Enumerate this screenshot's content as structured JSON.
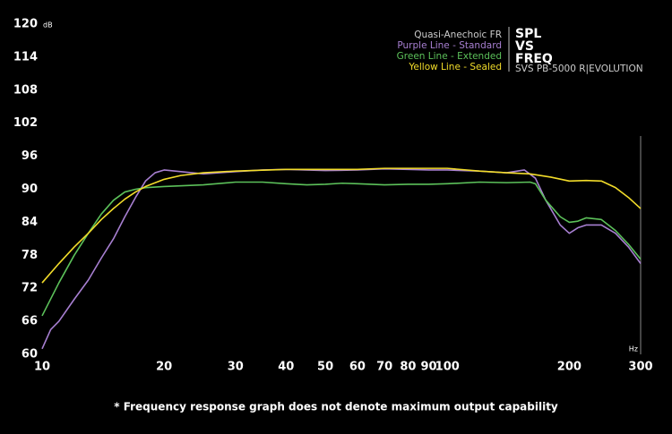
{
  "chart_data": {
    "type": "line",
    "title_lines": [
      "SPL",
      "VS",
      "FREQ"
    ],
    "subtitle": "SVS PB-5000 R|EVOLUTION",
    "legend_title": "Quasi-Anechoic FR",
    "y_unit": "dB",
    "x_unit": "Hz",
    "footnote": "* Frequency response graph does not denote maximum output capability",
    "xscale": "log",
    "xlim": [
      10,
      300
    ],
    "ylim": [
      60,
      120
    ],
    "xticks": [
      10,
      20,
      30,
      40,
      50,
      60,
      70,
      80,
      90,
      100,
      200,
      300
    ],
    "yticks": [
      60,
      66,
      72,
      78,
      84,
      90,
      96,
      102,
      108,
      114,
      120
    ],
    "grid": false,
    "legend_position": "top-right",
    "series": [
      {
        "name": "Purple Line - Standard",
        "color": "#a77fd1",
        "x": [
          10,
          10.5,
          11,
          12,
          13,
          14,
          15,
          16,
          17,
          18,
          19,
          20,
          22,
          25,
          30,
          35,
          40,
          50,
          60,
          70,
          80,
          90,
          100,
          120,
          140,
          155,
          165,
          175,
          190,
          200,
          210,
          220,
          240,
          260,
          280,
          300
        ],
        "values": [
          61,
          64.5,
          66,
          70,
          73.5,
          77.5,
          81,
          85,
          88.5,
          91.5,
          93,
          93.5,
          93.2,
          92.8,
          93.2,
          93.5,
          93.6,
          93.4,
          93.5,
          93.7,
          93.6,
          93.5,
          93.5,
          93.3,
          93,
          93.5,
          92,
          88,
          83.5,
          82,
          83,
          83.5,
          83.5,
          82,
          79.5,
          76.5
        ]
      },
      {
        "name": "Green Line - Extended",
        "color": "#5cc15a",
        "x": [
          10,
          11,
          12,
          13,
          14,
          15,
          16,
          17,
          18,
          20,
          25,
          30,
          35,
          40,
          45,
          50,
          55,
          60,
          70,
          80,
          90,
          100,
          120,
          140,
          160,
          165,
          175,
          190,
          200,
          210,
          220,
          240,
          260,
          280,
          300
        ],
        "values": [
          67,
          73,
          78,
          82,
          85.5,
          88,
          89.5,
          90,
          90.3,
          90.5,
          90.8,
          91.3,
          91.3,
          91,
          90.8,
          90.9,
          91.1,
          91,
          90.8,
          90.9,
          90.9,
          91,
          91.3,
          91.2,
          91.3,
          91,
          88,
          85,
          84,
          84.2,
          84.8,
          84.5,
          82.5,
          80,
          77.3
        ]
      },
      {
        "name": "Yellow Line - Sealed",
        "color": "#f2dc2a",
        "x": [
          10,
          11,
          12,
          13,
          14,
          15,
          16,
          17,
          18,
          20,
          22,
          25,
          30,
          40,
          50,
          60,
          70,
          80,
          100,
          120,
          140,
          160,
          180,
          200,
          220,
          240,
          260,
          280,
          300
        ],
        "values": [
          73,
          76.5,
          79.5,
          82,
          84.5,
          86.5,
          88.2,
          89.5,
          90.5,
          91.8,
          92.5,
          93,
          93.3,
          93.6,
          93.6,
          93.6,
          93.8,
          93.8,
          93.8,
          93.3,
          93,
          92.8,
          92.2,
          91.5,
          91.6,
          91.5,
          90.3,
          88.5,
          86.5
        ]
      }
    ]
  }
}
